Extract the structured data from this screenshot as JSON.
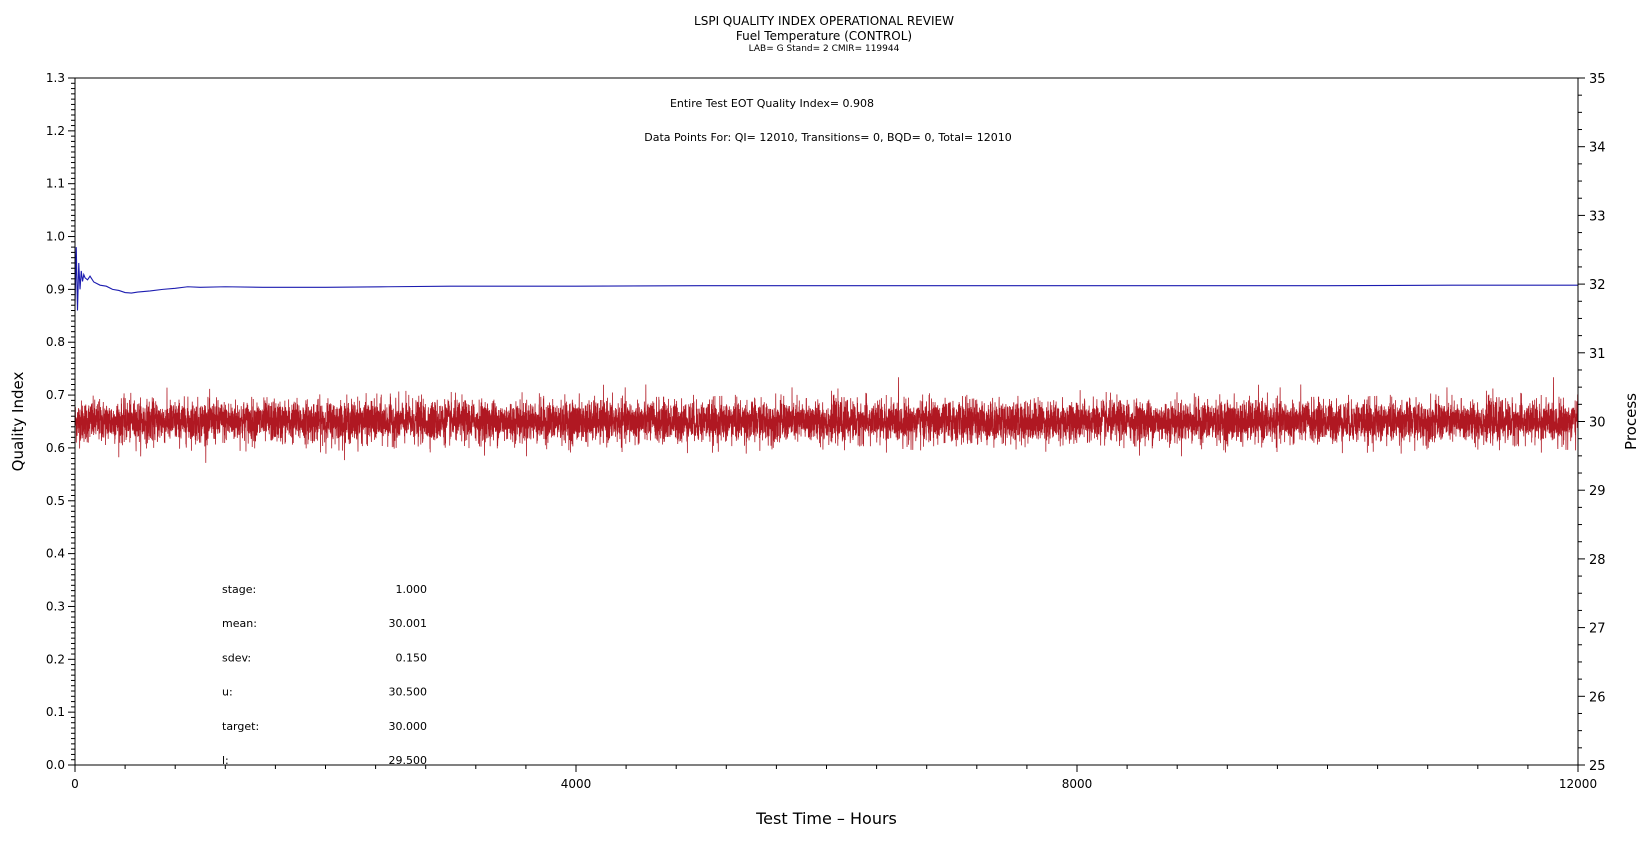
{
  "chart_data": {
    "type": "line",
    "title": "LSPI QUALITY INDEX OPERATIONAL REVIEW",
    "subtitle": "Fuel Temperature (CONTROL)",
    "subtitle2": "LAB= G Stand= 2 CMIR= 119944",
    "annotations": [
      "Entire Test EOT Quality Index=   0.908",
      "Data Points For: QI= 12010, Transitions=      0, BQD=      0, Total= 12010"
    ],
    "xlabel": "Test Time – Hours",
    "ylabel": "Quality Index",
    "y2label": "Process",
    "xlim": [
      0,
      12000
    ],
    "ylim": [
      0,
      1.3
    ],
    "y2lim": [
      25,
      35
    ],
    "x_ticks": [
      "0",
      "4000",
      "8000",
      "12000"
    ],
    "y_ticks": [
      "0.0",
      "0.1",
      "0.2",
      "0.3",
      "0.4",
      "0.5",
      "0.6",
      "0.7",
      "0.8",
      "0.9",
      "1.0",
      "1.1",
      "1.2",
      "1.3"
    ],
    "y2_ticks": [
      "25",
      "26",
      "27",
      "28",
      "29",
      "30",
      "31",
      "32",
      "33",
      "34",
      "35"
    ],
    "series": [
      {
        "axis": "left",
        "color": "#1c1cb0",
        "x": [
          0,
          10,
          20,
          30,
          40,
          50,
          60,
          70,
          80,
          100,
          120,
          150,
          200,
          250,
          300,
          350,
          400,
          450,
          500,
          600,
          700,
          800,
          900,
          1000,
          1200,
          1500,
          2000,
          2500,
          3000,
          4000,
          5000,
          6000,
          7000,
          8000,
          9000,
          10000,
          11000,
          12000
        ],
        "values": [
          0.87,
          0.98,
          0.86,
          0.95,
          0.9,
          0.935,
          0.915,
          0.928,
          0.922,
          0.918,
          0.925,
          0.914,
          0.908,
          0.906,
          0.9,
          0.898,
          0.894,
          0.893,
          0.895,
          0.897,
          0.9,
          0.902,
          0.905,
          0.904,
          0.905,
          0.904,
          0.904,
          0.905,
          0.906,
          0.906,
          0.907,
          0.907,
          0.907,
          0.907,
          0.907,
          0.907,
          0.908,
          0.908
        ]
      },
      {
        "axis": "right",
        "color": "#b01822",
        "n_points": 12010,
        "mean": 30.001,
        "sdev": 0.15
      }
    ],
    "stats": [
      {
        "label": "stage:",
        "value": "1.000"
      },
      {
        "label": "mean:",
        "value": "30.001"
      },
      {
        "label": "sdev:",
        "value": "0.150"
      },
      {
        "label": "u:",
        "value": "30.500"
      },
      {
        "label": "target:",
        "value": "30.000"
      },
      {
        "label": "l:",
        "value": "29.500"
      }
    ]
  }
}
